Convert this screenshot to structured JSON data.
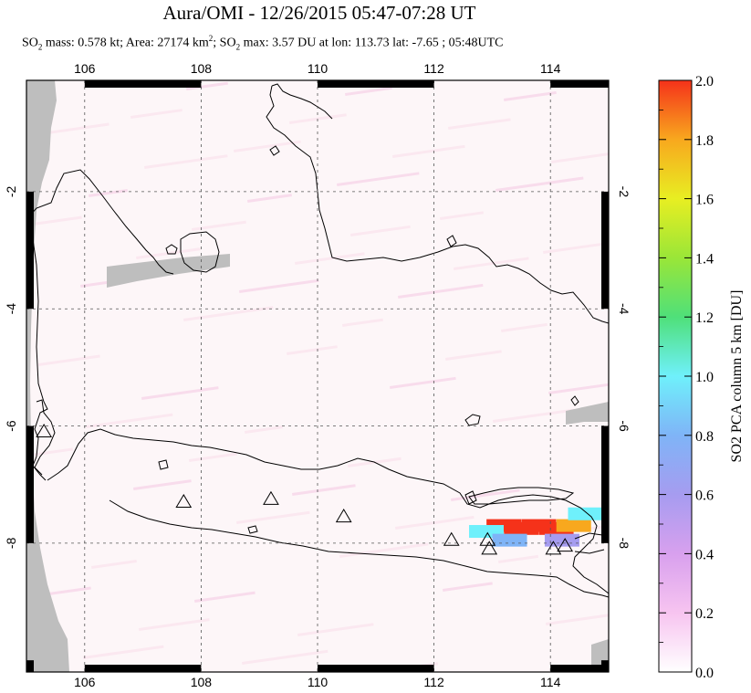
{
  "title": "Aura/OMI - 12/26/2015 05:47-07:28 UT",
  "subtitle": {
    "so2_mass_label": "SO",
    "mass_text": " mass: 0.578 kt; Area: 27174 km",
    "max_label": "; SO",
    "max_text": " max: 3.57 DU at lon: 113.73 lat: -7.65 ; 05:48UTC"
  },
  "colors": {
    "no_data": "#bebebe",
    "background": "#fdf6f8",
    "coast": "#000000"
  },
  "chart_data": {
    "type": "heatmap",
    "title": "Aura/OMI - 12/26/2015 05:47-07:28 UT",
    "xlabel": "",
    "ylabel": "",
    "xlim": [
      105,
      115
    ],
    "ylim": [
      -10.2,
      -0.1
    ],
    "x_ticks": [
      106,
      108,
      110,
      112,
      114
    ],
    "y_ticks": [
      -2,
      -4,
      -6,
      -8
    ],
    "grid": true,
    "colorbar": {
      "label": "SO2 PCA column 5 km [DU]",
      "min": 0.0,
      "max": 2.0,
      "ticks": [
        "0.0",
        "0.2",
        "0.4",
        "0.6",
        "0.8",
        "1.0",
        "1.2",
        "1.4",
        "1.6",
        "1.8",
        "2.0"
      ],
      "colors": [
        "#ffffff",
        "#f7c4f0",
        "#d8a0ee",
        "#a69cf0",
        "#7fb4f7",
        "#6ff0fb",
        "#4fe07a",
        "#9ae638",
        "#e8ee22",
        "#f8a81e",
        "#f5321a"
      ]
    },
    "so2_plume": [
      {
        "lon": 113.2,
        "lat": -7.7,
        "du": 2.0
      },
      {
        "lon": 113.5,
        "lat": -7.75,
        "du": 2.0
      },
      {
        "lon": 113.8,
        "lat": -7.7,
        "du": 2.0
      },
      {
        "lon": 114.1,
        "lat": -7.75,
        "du": 1.9
      },
      {
        "lon": 114.4,
        "lat": -7.7,
        "du": 1.8
      },
      {
        "lon": 114.6,
        "lat": -7.5,
        "du": 1.0
      },
      {
        "lon": 112.9,
        "lat": -7.8,
        "du": 0.9
      },
      {
        "lon": 113.3,
        "lat": -7.95,
        "du": 0.8
      },
      {
        "lon": 114.2,
        "lat": -7.95,
        "du": 0.6
      }
    ],
    "volcanoes": [
      {
        "lon": 105.3,
        "lat": -6.1
      },
      {
        "lon": 107.7,
        "lat": -7.3
      },
      {
        "lon": 109.2,
        "lat": -7.25
      },
      {
        "lon": 110.45,
        "lat": -7.55
      },
      {
        "lon": 112.3,
        "lat": -7.95
      },
      {
        "lon": 112.92,
        "lat": -7.95
      },
      {
        "lon": 112.95,
        "lat": -8.1
      },
      {
        "lon": 114.05,
        "lat": -8.1
      },
      {
        "lon": 114.25,
        "lat": -8.05
      }
    ]
  }
}
